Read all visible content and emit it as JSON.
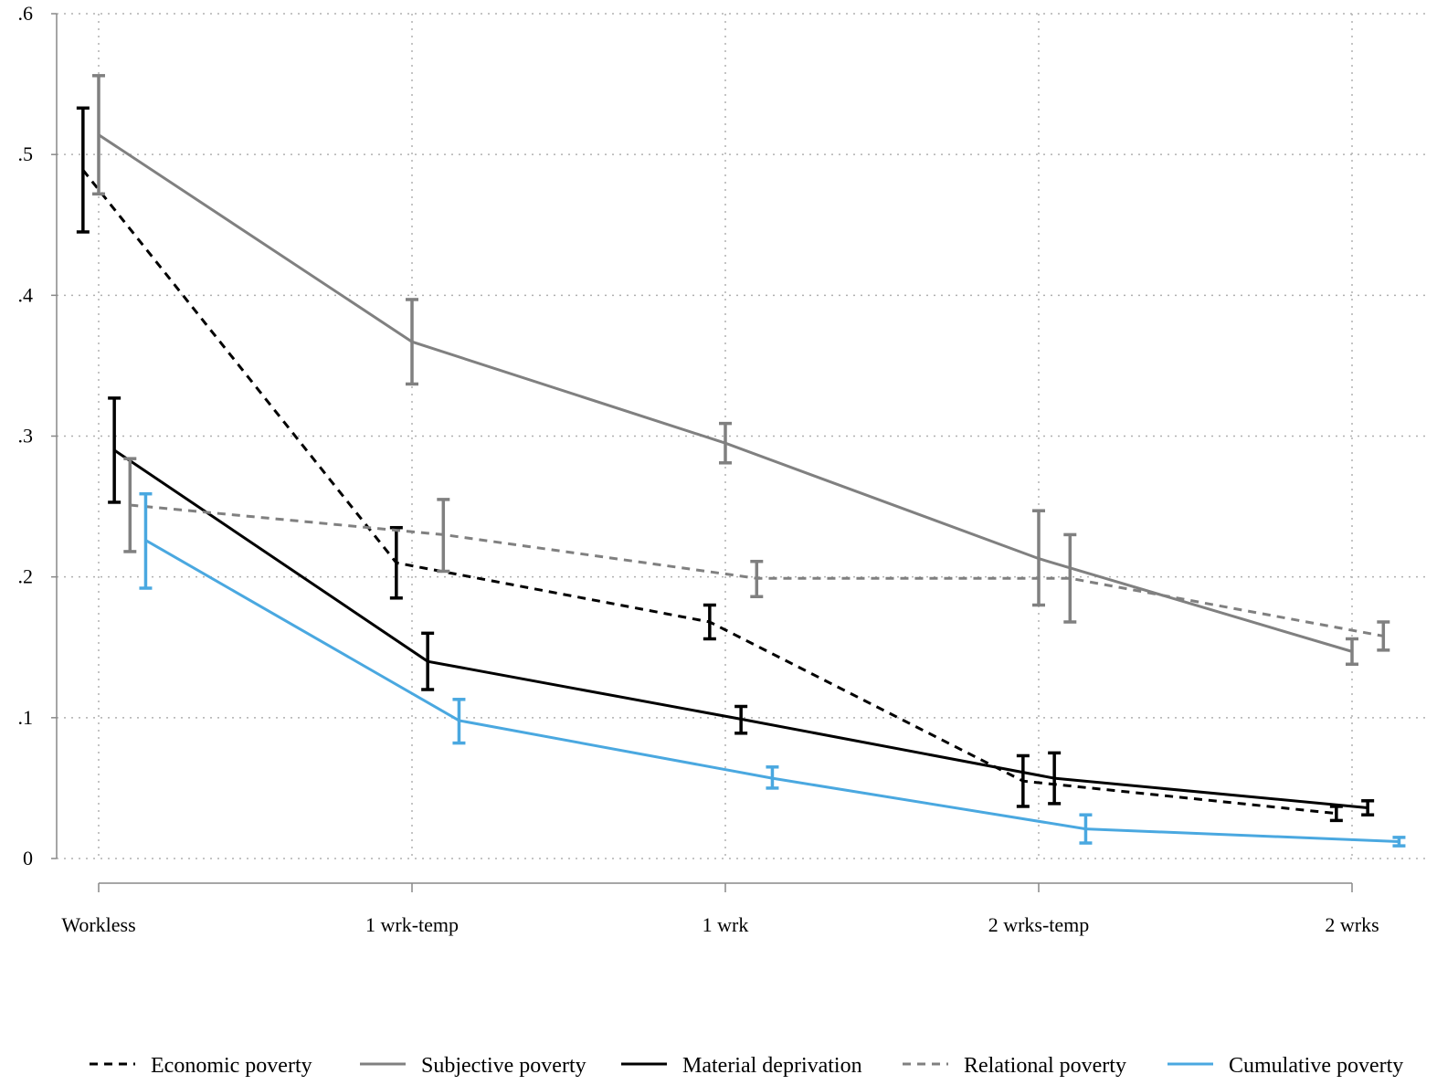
{
  "chart_data": {
    "type": "line",
    "title": "",
    "xlabel": "",
    "ylabel": "",
    "categories": [
      "Workless",
      "1 wrk-temp",
      "1 wrk",
      "2 wrks-temp",
      "2 wrks"
    ],
    "ylim": [
      0,
      0.6
    ],
    "yticks": [
      {
        "value": 0,
        "label": "0"
      },
      {
        "value": 0.1,
        "label": ".1"
      },
      {
        "value": 0.2,
        "label": ".2"
      },
      {
        "value": 0.3,
        "label": ".3"
      },
      {
        "value": 0.4,
        "label": ".4"
      },
      {
        "value": 0.5,
        "label": ".5"
      },
      {
        "value": 0.6,
        "label": ".6"
      }
    ],
    "grid": true,
    "legend_position": "bottom",
    "error_bars": true,
    "series": [
      {
        "name": "Economic poverty",
        "color": "#000000",
        "dash": "dashed",
        "offset": -0.05,
        "values": [
          0.489,
          0.21,
          0.168,
          0.055,
          0.032
        ],
        "ci_low": [
          0.445,
          0.185,
          0.156,
          0.037,
          0.027
        ],
        "ci_high": [
          0.533,
          0.235,
          0.18,
          0.073,
          0.037
        ]
      },
      {
        "name": "Subjective poverty",
        "color": "#808080",
        "dash": "solid",
        "offset": 0.0,
        "values": [
          0.514,
          0.367,
          0.295,
          0.213,
          0.147
        ],
        "ci_low": [
          0.472,
          0.337,
          0.281,
          0.18,
          0.138
        ],
        "ci_high": [
          0.556,
          0.397,
          0.309,
          0.247,
          0.156
        ]
      },
      {
        "name": "Material deprivation",
        "color": "#000000",
        "dash": "solid",
        "offset": 0.05,
        "values": [
          0.29,
          0.14,
          0.099,
          0.057,
          0.036
        ],
        "ci_low": [
          0.253,
          0.12,
          0.089,
          0.039,
          0.031
        ],
        "ci_high": [
          0.327,
          0.16,
          0.108,
          0.075,
          0.041
        ]
      },
      {
        "name": "Relational poverty",
        "color": "#808080",
        "dash": "dashed",
        "offset": 0.1,
        "values": [
          0.251,
          0.23,
          0.199,
          0.199,
          0.158
        ],
        "ci_low": [
          0.218,
          0.204,
          0.186,
          0.168,
          0.148
        ],
        "ci_high": [
          0.284,
          0.255,
          0.211,
          0.23,
          0.168
        ]
      },
      {
        "name": "Cumulative poverty",
        "color": "#4aa8e0",
        "dash": "solid",
        "offset": 0.15,
        "values": [
          0.226,
          0.098,
          0.057,
          0.021,
          0.012
        ],
        "ci_low": [
          0.192,
          0.082,
          0.05,
          0.011,
          0.009
        ],
        "ci_high": [
          0.259,
          0.113,
          0.065,
          0.031,
          0.015
        ]
      }
    ]
  }
}
